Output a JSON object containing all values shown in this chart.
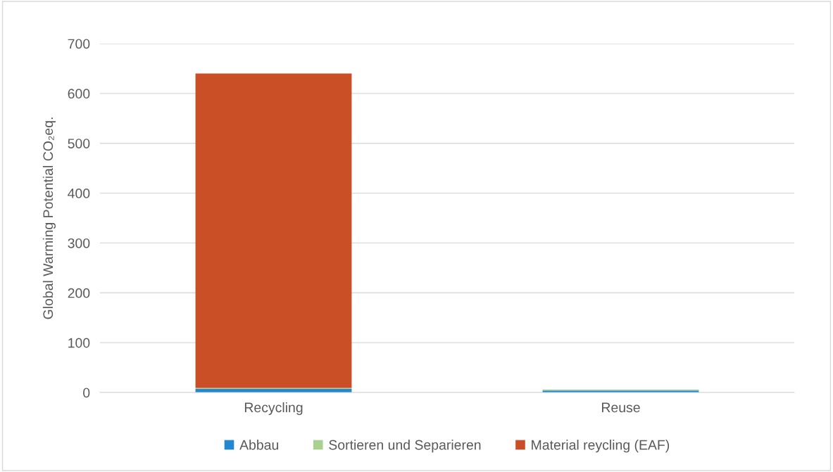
{
  "chart_data": {
    "type": "bar",
    "stacked": true,
    "ylabel": "Global Warming Potential CO₂eq.",
    "categories": [
      "Recycling",
      "Reuse"
    ],
    "series": [
      {
        "name": "Abbau",
        "color": "#2187d0",
        "values": [
          7,
          4
        ]
      },
      {
        "name": "Sortieren und Separieren",
        "color": "#a9d18e",
        "values": [
          2,
          2
        ]
      },
      {
        "name": "Material reycling (EAF)",
        "color": "#ca4e26",
        "values": [
          631,
          0
        ]
      }
    ],
    "ylim": [
      0,
      700
    ],
    "yticks": [
      0,
      100,
      200,
      300,
      400,
      500,
      600,
      700
    ],
    "grid": "y",
    "legend": "bottom"
  }
}
